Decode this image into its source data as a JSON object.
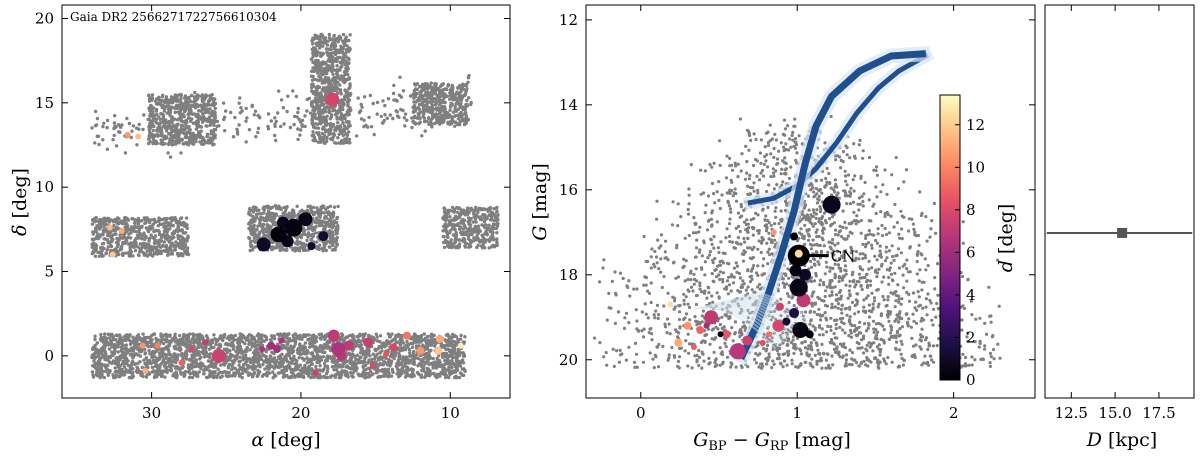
{
  "chart_data": [
    {
      "type": "scatter",
      "panel": "sky",
      "annotation": "Gaia DR2 2566271722756610304",
      "xlabel_sym": "α",
      "xlabel_unit": " [deg]",
      "ylabel_sym": "δ",
      "ylabel_unit": " [deg]",
      "xlim": [
        36,
        6
      ],
      "ylim": [
        -2.5,
        20.8
      ],
      "xticks": [
        30,
        20,
        10
      ],
      "yticks": [
        0,
        5,
        10,
        15,
        20
      ],
      "background_regions": [
        {
          "ra": [
            34,
            9
          ],
          "dec": [
            -1.3,
            1.3
          ]
        },
        {
          "ra": [
            34,
            27.5
          ],
          "dec": [
            5.9,
            8.2
          ]
        },
        {
          "ra": [
            23.5,
            17.5
          ],
          "dec": [
            6.2,
            8.9
          ]
        },
        {
          "ra": [
            10.5,
            6.8
          ],
          "dec": [
            6.4,
            8.8
          ]
        },
        {
          "ra": [
            30.2,
            25.7
          ],
          "dec": [
            12.5,
            15.5
          ]
        },
        {
          "ra": [
            19.3,
            16.7
          ],
          "dec": [
            12.6,
            19.1
          ]
        },
        {
          "ra": [
            12.5,
            8.8
          ],
          "dec": [
            13.7,
            16.2
          ]
        },
        {
          "ra": [
            34.0,
            8.5
          ],
          "dec": [
            12.2,
            16.2
          ],
          "sparse": true
        }
      ],
      "members": [
        {
          "ra": 20.5,
          "dec": 7.6,
          "d": 0.3,
          "s": 9
        },
        {
          "ra": 21.5,
          "dec": 7.2,
          "d": 0.2,
          "s": 8
        },
        {
          "ra": 19.7,
          "dec": 8.1,
          "d": 0.5,
          "s": 7
        },
        {
          "ra": 22.5,
          "dec": 6.6,
          "d": 0.8,
          "s": 7
        },
        {
          "ra": 20.9,
          "dec": 6.8,
          "d": 0.4,
          "s": 6
        },
        {
          "ra": 18.5,
          "dec": 7.1,
          "d": 1.2,
          "s": 5
        },
        {
          "ra": 21.2,
          "dec": 7.9,
          "d": 0.6,
          "s": 6
        },
        {
          "ra": 19.3,
          "dec": 6.5,
          "d": 0.9,
          "s": 4
        },
        {
          "ra": 17.9,
          "dec": 15.2,
          "d": 7.7,
          "s": 7
        },
        {
          "ra": 32.8,
          "dec": 7.6,
          "d": 11.5,
          "s": 3
        },
        {
          "ra": 32.0,
          "dec": 7.4,
          "d": 11.0,
          "s": 3
        },
        {
          "ra": 32.6,
          "dec": 6.0,
          "d": 12.0,
          "s": 3
        },
        {
          "ra": 31.6,
          "dec": 13.1,
          "d": 10.5,
          "s": 3
        },
        {
          "ra": 30.9,
          "dec": 13.0,
          "d": 11.5,
          "s": 3
        },
        {
          "ra": 17.8,
          "dec": 1.2,
          "d": 7.0,
          "s": 6
        },
        {
          "ra": 17.5,
          "dec": 0.4,
          "d": 6.5,
          "s": 7
        },
        {
          "ra": 16.8,
          "dec": 0.6,
          "d": 7.0,
          "s": 5
        },
        {
          "ra": 17.3,
          "dec": 0.0,
          "d": 6.8,
          "s": 5
        },
        {
          "ra": 15.5,
          "dec": 0.8,
          "d": 7.2,
          "s": 5
        },
        {
          "ra": 13.8,
          "dec": 0.5,
          "d": 7.8,
          "s": 4
        },
        {
          "ra": 12.9,
          "dec": 1.2,
          "d": 9.5,
          "s": 4
        },
        {
          "ra": 12.0,
          "dec": 0.3,
          "d": 10.5,
          "s": 4
        },
        {
          "ra": 10.7,
          "dec": 1.0,
          "d": 11.0,
          "s": 4
        },
        {
          "ra": 10.8,
          "dec": 0.3,
          "d": 11.8,
          "s": 4
        },
        {
          "ra": 9.3,
          "dec": 0.6,
          "d": 13.0,
          "s": 3
        },
        {
          "ra": 15.2,
          "dec": -0.6,
          "d": 8.0,
          "s": 3
        },
        {
          "ra": 14.3,
          "dec": 0.1,
          "d": 8.5,
          "s": 3
        },
        {
          "ra": 25.5,
          "dec": 0.0,
          "d": 7.5,
          "s": 7
        },
        {
          "ra": 22.0,
          "dec": 0.6,
          "d": 6.0,
          "s": 4
        },
        {
          "ra": 21.6,
          "dec": 0.4,
          "d": 6.2,
          "s": 4
        },
        {
          "ra": 22.6,
          "dec": 0.4,
          "d": 6.5,
          "s": 3
        },
        {
          "ra": 26.4,
          "dec": 0.8,
          "d": 7.2,
          "s": 3
        },
        {
          "ra": 27.3,
          "dec": 0.4,
          "d": 8.0,
          "s": 3
        },
        {
          "ra": 29.6,
          "dec": 0.6,
          "d": 9.8,
          "s": 3
        },
        {
          "ra": 30.6,
          "dec": 0.6,
          "d": 10.5,
          "s": 3
        },
        {
          "ra": 30.4,
          "dec": -0.9,
          "d": 11.2,
          "s": 3
        },
        {
          "ra": 28.0,
          "dec": -0.4,
          "d": 9.0,
          "s": 3
        },
        {
          "ra": 19.0,
          "dec": -1.0,
          "d": 7.5,
          "s": 3
        },
        {
          "ra": 21.3,
          "dec": 0.9,
          "d": 6.4,
          "s": 3
        }
      ]
    },
    {
      "type": "scatter",
      "panel": "cmd",
      "xlabel_sym": "G",
      "xlabel_sub1": "BP",
      "xlabel_mid": " − ",
      "xlabel_sub2": "RP",
      "xlabel_unit": " [mag]",
      "ylabel_sym": "G",
      "ylabel_unit": " [mag]",
      "xlim": [
        -0.35,
        2.52
      ],
      "ylim": [
        20.9,
        11.65
      ],
      "xticks": [
        0,
        1,
        2
      ],
      "yticks": [
        12,
        14,
        16,
        18,
        20
      ],
      "isochrone_upper": [
        [
          0.7,
          16.3
        ],
        [
          0.85,
          16.2
        ],
        [
          1.0,
          15.9
        ],
        [
          1.12,
          15.5
        ],
        [
          1.25,
          14.9
        ],
        [
          1.38,
          14.2
        ],
        [
          1.52,
          13.6
        ],
        [
          1.65,
          13.2
        ],
        [
          1.82,
          12.85
        ]
      ],
      "isochrone_lower": [
        [
          0.65,
          19.9
        ],
        [
          0.74,
          19.2
        ],
        [
          0.82,
          18.4
        ],
        [
          0.9,
          17.5
        ],
        [
          0.98,
          16.5
        ],
        [
          1.05,
          15.4
        ],
        [
          1.12,
          14.5
        ],
        [
          1.22,
          13.8
        ],
        [
          1.4,
          13.2
        ],
        [
          1.6,
          12.85
        ],
        [
          1.8,
          12.8
        ]
      ],
      "members": [
        {
          "c": 1.22,
          "g": 16.35,
          "d": 0.6,
          "s": 9
        },
        {
          "c": 1.02,
          "g": 17.55,
          "d": 12.5,
          "s": 4
        },
        {
          "c": 0.98,
          "g": 17.1,
          "d": 0.2,
          "s": 4
        },
        {
          "c": 0.85,
          "g": 17.0,
          "d": 10.5,
          "s": 3
        },
        {
          "c": 1.01,
          "g": 18.3,
          "d": 0.5,
          "s": 9
        },
        {
          "c": 0.99,
          "g": 17.9,
          "d": 0.3,
          "s": 6
        },
        {
          "c": 1.05,
          "g": 18.0,
          "d": 0.8,
          "s": 6
        },
        {
          "c": 1.04,
          "g": 18.6,
          "d": 7.0,
          "s": 7
        },
        {
          "c": 0.98,
          "g": 18.9,
          "d": 1.5,
          "s": 5
        },
        {
          "c": 0.88,
          "g": 19.2,
          "d": 7.8,
          "s": 6
        },
        {
          "c": 0.93,
          "g": 19.1,
          "d": 1.0,
          "s": 4
        },
        {
          "c": 1.02,
          "g": 19.3,
          "d": 0.4,
          "s": 8
        },
        {
          "c": 1.08,
          "g": 19.4,
          "d": 0.2,
          "s": 4
        },
        {
          "c": 0.62,
          "g": 19.8,
          "d": 6.8,
          "s": 8
        },
        {
          "c": 0.68,
          "g": 19.55,
          "d": 7.5,
          "s": 5
        },
        {
          "c": 0.55,
          "g": 19.4,
          "d": 8.5,
          "s": 4
        },
        {
          "c": 0.38,
          "g": 19.3,
          "d": 9.0,
          "s": 4
        },
        {
          "c": 0.3,
          "g": 19.2,
          "d": 10.5,
          "s": 4
        },
        {
          "c": 0.24,
          "g": 19.6,
          "d": 11.0,
          "s": 4
        },
        {
          "c": 0.19,
          "g": 18.7,
          "d": 12.5,
          "s": 3
        },
        {
          "c": 0.45,
          "g": 19.0,
          "d": 7.0,
          "s": 7
        },
        {
          "c": 0.34,
          "g": 19.7,
          "d": 8.8,
          "s": 3
        },
        {
          "c": 0.78,
          "g": 19.6,
          "d": 8.2,
          "s": 3
        },
        {
          "c": 0.82,
          "g": 19.4,
          "d": 9.5,
          "s": 3
        },
        {
          "c": 0.89,
          "g": 18.75,
          "d": 7.5,
          "s": 4
        },
        {
          "c": 0.51,
          "g": 19.4,
          "d": 0.4,
          "s": 3
        },
        {
          "c": 0.42,
          "g": 19.2,
          "d": 6.0,
          "s": 3
        }
      ],
      "cn": {
        "c": 1.01,
        "g": 17.55,
        "label": "CN"
      },
      "colorbar": {
        "label_sym": "d",
        "label_unit": " [deg]",
        "range": [
          0,
          13.4
        ],
        "ticks": [
          0,
          2,
          4,
          6,
          8,
          10,
          12
        ],
        "colors": [
          "#000004",
          "#1c1044",
          "#4f127b",
          "#812581",
          "#b5367a",
          "#e55064",
          "#fb8761",
          "#fec287",
          "#fcfdbf"
        ]
      }
    },
    {
      "type": "errorbar",
      "panel": "distance",
      "xlabel_sym": "D",
      "xlabel_unit": " [kpc]",
      "xlim": [
        11.0,
        19.5
      ],
      "xticks": [
        12.5,
        15.0,
        17.5
      ],
      "xtick_labels": [
        "12.5",
        "15.0",
        "17.5"
      ],
      "ylim": [
        0,
        1
      ],
      "value": 15.4,
      "err_low": 11.1,
      "err_high": 19.4,
      "y": 0.42
    }
  ]
}
